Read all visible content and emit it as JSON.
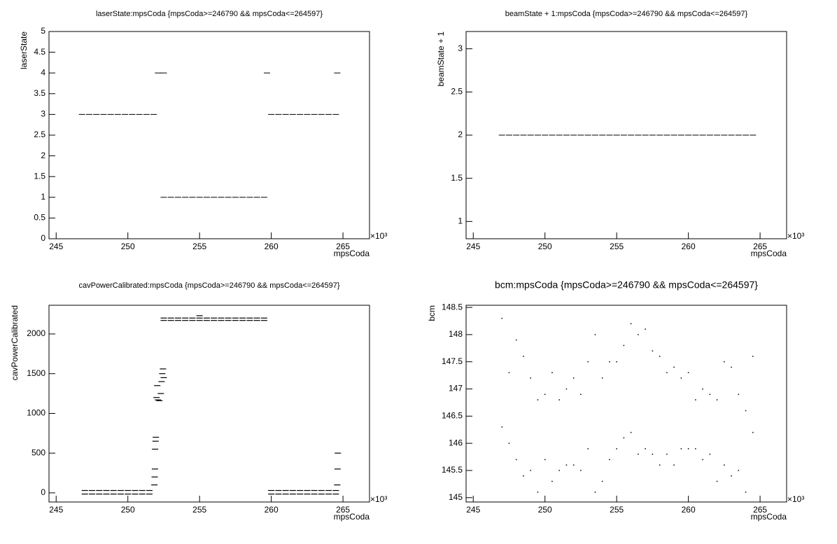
{
  "chart_data": [
    {
      "type": "scatter",
      "title": "laserState:mpsCoda {mpsCoda>=246790 && mpsCoda<=264597}",
      "x_label": "mpsCoda",
      "y_label": "laserState",
      "x_scale_label": "×10³",
      "color": "#000000",
      "xlim": [
        244.5,
        266.85
      ],
      "xticks": [
        245,
        250,
        255,
        260,
        265
      ],
      "ylim": [
        0,
        5
      ],
      "yticks": [
        0,
        0.5,
        1,
        1.5,
        2,
        2.5,
        3,
        3.5,
        4,
        4.5,
        5
      ],
      "x": [
        246.8,
        247.3,
        247.8,
        248.3,
        248.8,
        249.3,
        249.8,
        250.3,
        250.8,
        251.3,
        251.8,
        252.1,
        252.5,
        252.5,
        253,
        253.5,
        254,
        254.5,
        255,
        255.5,
        256,
        256.5,
        257,
        257.5,
        258,
        258.5,
        259,
        259.5,
        259.7,
        264.6,
        260,
        260.5,
        261,
        261.5,
        262,
        262.5,
        263,
        263.5,
        264,
        264.5
      ],
      "values": [
        3,
        3,
        3,
        3,
        3,
        3,
        3,
        3,
        3,
        3,
        3,
        4,
        4,
        1,
        1,
        1,
        1,
        1,
        1,
        1,
        1,
        1,
        1,
        1,
        1,
        1,
        1,
        1,
        4,
        4,
        3,
        3,
        3,
        3,
        3,
        3,
        3,
        3,
        3,
        3
      ]
    },
    {
      "type": "scatter",
      "title": "beamState + 1:mpsCoda {mpsCoda>=246790 && mpsCoda<=264597}",
      "x_label": "mpsCoda",
      "y_label": "beamState + 1",
      "x_scale_label": "×10³",
      "color": "#000000",
      "xlim": [
        244.5,
        266.85
      ],
      "xticks": [
        245,
        250,
        255,
        260,
        265
      ],
      "ylim": [
        0.8,
        3.2
      ],
      "yticks": [
        1,
        1.5,
        2,
        2.5,
        3
      ],
      "x": [
        247,
        247.5,
        248,
        248.5,
        249,
        249.5,
        250,
        250.5,
        251,
        251.5,
        252,
        252.5,
        253,
        253.5,
        254,
        254.5,
        255,
        255.5,
        256,
        256.5,
        257,
        257.5,
        258,
        258.5,
        259,
        259.5,
        260,
        260.5,
        261,
        261.5,
        262,
        262.5,
        263,
        263.5,
        264,
        264.5
      ],
      "values": [
        2,
        2,
        2,
        2,
        2,
        2,
        2,
        2,
        2,
        2,
        2,
        2,
        2,
        2,
        2,
        2,
        2,
        2,
        2,
        2,
        2,
        2,
        2,
        2,
        2,
        2,
        2,
        2,
        2,
        2,
        2,
        2,
        2,
        2,
        2,
        2
      ]
    },
    {
      "type": "scatter",
      "title": "cavPowerCalibrated:mpsCoda {mpsCoda>=246790 && mpsCoda<=264597}",
      "x_label": "mpsCoda",
      "y_label": "cavPowerCalibrated",
      "x_scale_label": "×10³",
      "color": "#000000",
      "xlim": [
        244.5,
        266.85
      ],
      "xticks": [
        245,
        250,
        255,
        260,
        265
      ],
      "ylim": [
        -115,
        2361
      ],
      "yticks": [
        0,
        500,
        1000,
        1500,
        2000
      ],
      "x": [
        247,
        247.5,
        248,
        248.5,
        249,
        249.5,
        250,
        250.5,
        251,
        251.5,
        247,
        247.5,
        248,
        248.5,
        249,
        249.5,
        250,
        250.5,
        251,
        251.5,
        251.85,
        251.87,
        251.89,
        251.9,
        251.93,
        251.95,
        252,
        252.05,
        252.1,
        252.2,
        252.3,
        252.35,
        252.4,
        252.45,
        252.5,
        252.5,
        253,
        253.5,
        254,
        254.5,
        255,
        255.5,
        256,
        256.5,
        257,
        257.5,
        258,
        258.5,
        259,
        259.5,
        252.5,
        253,
        253.5,
        254,
        254.5,
        255,
        255.5,
        256,
        256.5,
        257,
        257.5,
        258,
        258.5,
        259,
        259.5,
        255,
        260,
        260.5,
        261,
        261.5,
        262,
        262.5,
        263,
        263.5,
        264,
        264.5,
        260,
        260.5,
        261,
        261.5,
        262,
        262.5,
        263,
        263.5,
        264,
        264.5,
        264.6,
        264.62,
        264.64
      ],
      "values": [
        30,
        30,
        30,
        30,
        30,
        30,
        30,
        30,
        30,
        30,
        -15,
        -15,
        -15,
        -15,
        -15,
        -15,
        -15,
        -15,
        -15,
        -15,
        100,
        200,
        300,
        550,
        650,
        700,
        1200,
        1350,
        1170,
        1160,
        1250,
        1400,
        1500,
        1560,
        1450,
        2200,
        2200,
        2200,
        2200,
        2200,
        2200,
        2200,
        2200,
        2200,
        2200,
        2200,
        2200,
        2200,
        2200,
        2200,
        2170,
        2170,
        2170,
        2170,
        2170,
        2170,
        2170,
        2170,
        2170,
        2170,
        2170,
        2170,
        2170,
        2170,
        2170,
        2230,
        30,
        30,
        30,
        30,
        30,
        30,
        30,
        30,
        30,
        30,
        -15,
        -15,
        -15,
        -15,
        -15,
        -15,
        -15,
        -15,
        -15,
        -15,
        100,
        300,
        500
      ]
    },
    {
      "type": "scatter",
      "title": "bcm:mpsCoda {mpsCoda>=246790 && mpsCoda<=264597}",
      "x_label": "mpsCoda",
      "y_label": "bcm",
      "x_scale_label": "×10³",
      "color": "#000000",
      "xlim": [
        244.5,
        266.85
      ],
      "xticks": [
        245,
        250,
        255,
        260,
        265
      ],
      "ylim": [
        144.92,
        148.54
      ],
      "yticks": [
        145,
        145.5,
        146,
        146.5,
        147,
        147.5,
        148,
        148.5
      ],
      "x": [
        247,
        247,
        247.5,
        247.5,
        248,
        248,
        248.5,
        248.5,
        249,
        249,
        249.5,
        249.5,
        250,
        250,
        250.5,
        250.5,
        251,
        251,
        251.5,
        251.5,
        252,
        252,
        252.5,
        252.5,
        253,
        253,
        253.5,
        253.5,
        254,
        254,
        254.5,
        254.5,
        255,
        255,
        255.5,
        255.5,
        256,
        256,
        256.5,
        256.5,
        257,
        257,
        257.5,
        257.5,
        258,
        258,
        258.5,
        258.5,
        259,
        259,
        259.5,
        259.5,
        260,
        260,
        260.5,
        260.5,
        261,
        261,
        261.5,
        261.5,
        262,
        262,
        262.5,
        262.5,
        263,
        263,
        263.5,
        263.5,
        264,
        264,
        264.5,
        264.5
      ],
      "values": [
        146.3,
        148.3,
        146.0,
        147.3,
        145.7,
        147.9,
        145.4,
        147.6,
        145.5,
        147.2,
        145.1,
        146.8,
        145.7,
        146.9,
        145.3,
        147.3,
        145.5,
        146.8,
        145.6,
        147.0,
        145.6,
        147.2,
        145.5,
        146.9,
        145.9,
        147.5,
        145.1,
        148.0,
        145.3,
        147.2,
        145.7,
        147.5,
        145.9,
        147.5,
        146.1,
        147.8,
        146.2,
        148.2,
        145.8,
        148.0,
        145.9,
        148.1,
        145.8,
        147.7,
        145.6,
        147.6,
        145.8,
        147.3,
        145.6,
        147.4,
        145.9,
        147.2,
        145.9,
        147.3,
        145.9,
        146.8,
        145.7,
        147.0,
        145.8,
        146.9,
        145.3,
        146.8,
        145.6,
        147.5,
        145.4,
        147.4,
        145.5,
        146.9,
        145.1,
        146.6,
        146.2,
        147.6
      ]
    }
  ]
}
